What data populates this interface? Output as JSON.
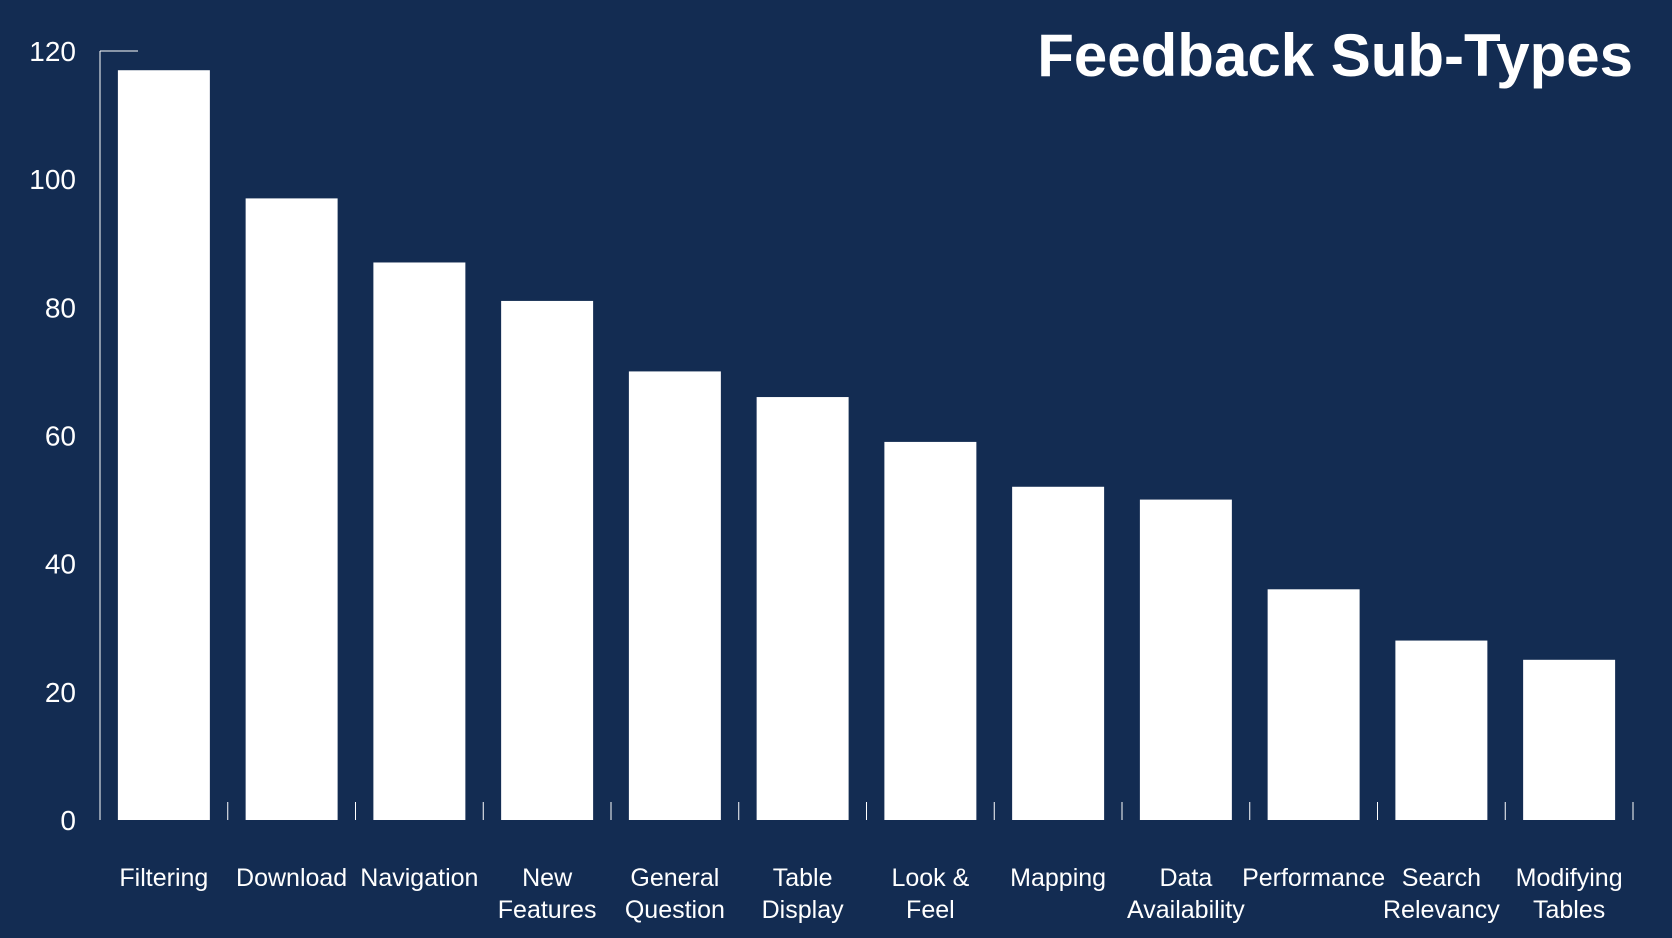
{
  "chart_data": {
    "type": "bar",
    "title": "Feedback Sub-Types",
    "xlabel": "",
    "ylabel": "",
    "ylim": [
      0,
      120
    ],
    "yticks": [
      0,
      20,
      40,
      60,
      80,
      100,
      120
    ],
    "categories": [
      [
        "Filtering"
      ],
      [
        "Download"
      ],
      [
        "Navigation"
      ],
      [
        "New",
        "Features"
      ],
      [
        "General",
        "Question"
      ],
      [
        "Table",
        "Display"
      ],
      [
        "Look &",
        "Feel"
      ],
      [
        "Mapping"
      ],
      [
        "Data",
        "Availability"
      ],
      [
        "Performance"
      ],
      [
        "Search",
        "Relevancy"
      ],
      [
        "Modifying",
        "Tables"
      ]
    ],
    "values": [
      117,
      97,
      87,
      81,
      70,
      66,
      59,
      52,
      50,
      36,
      28,
      25
    ],
    "grid": false,
    "legend": "none",
    "colors": {
      "background": "#132c52",
      "bar": "#ffffff",
      "text": "#ffffff"
    }
  }
}
